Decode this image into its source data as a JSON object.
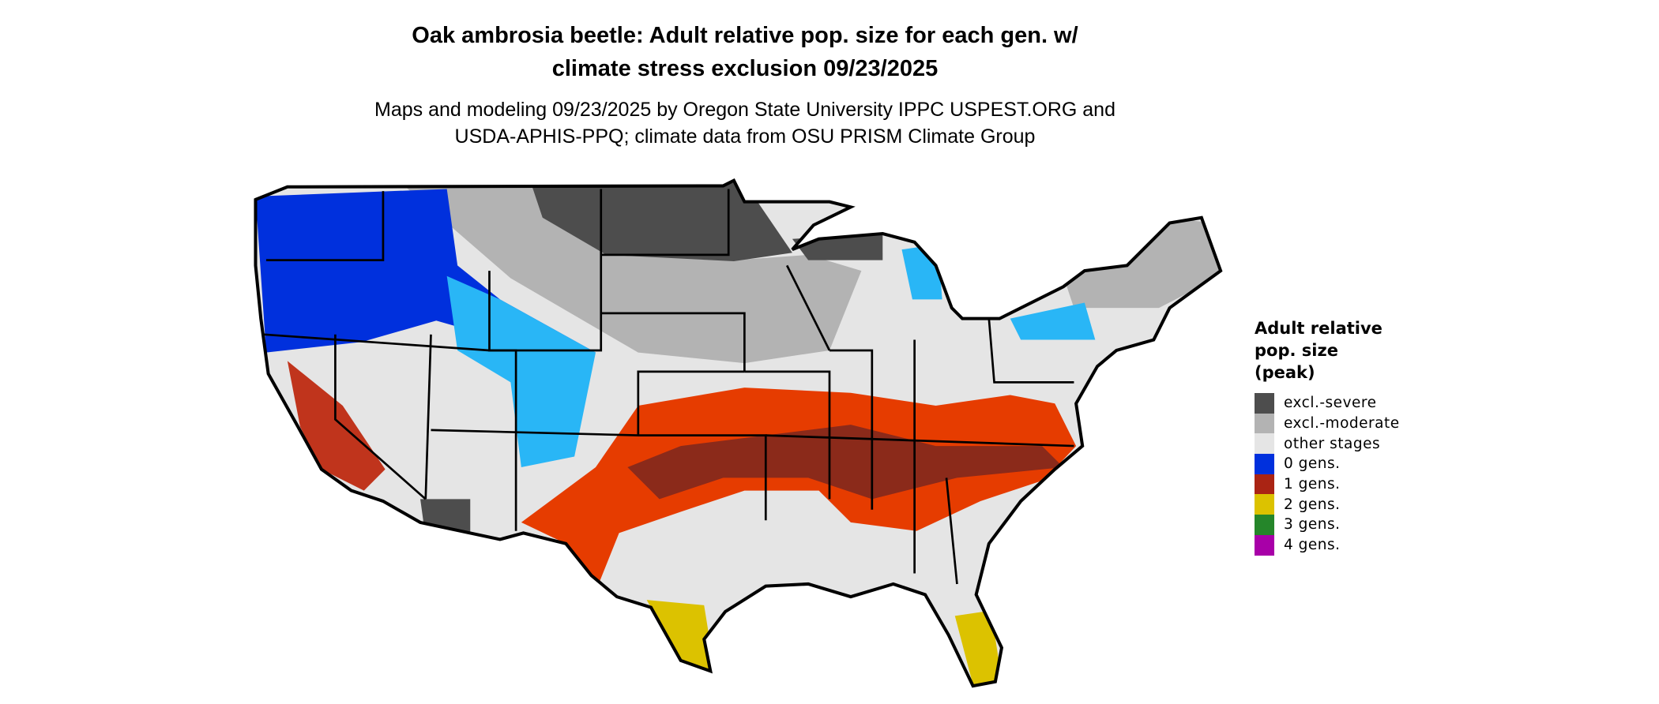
{
  "title": {
    "line1": "Oak ambrosia beetle: Adult relative pop. size for each gen. w/",
    "line2": "climate stress exclusion 09/23/2025"
  },
  "subtitle": {
    "line1": "Maps and modeling 09/23/2025 by Oregon State University IPPC USPEST.ORG and",
    "line2": "USDA-APHIS-PPQ; climate data from OSU PRISM Climate Group"
  },
  "legend": {
    "title_lines": [
      "Adult relative",
      "pop. size",
      "(peak)"
    ],
    "items": [
      {
        "label": "excl.-severe",
        "color": "#4d4d4d"
      },
      {
        "label": "excl.-moderate",
        "color": "#b3b3b3"
      },
      {
        "label": "other stages",
        "color": "#e5e5e5"
      },
      {
        "label": "0 gens.",
        "color": "#0030dd"
      },
      {
        "label": "1 gens.",
        "color": "#aa2414"
      },
      {
        "label": "2 gens.",
        "color": "#dcc200"
      },
      {
        "label": "3 gens.",
        "color": "#25862a"
      },
      {
        "label": "4 gens.",
        "color": "#a800a8"
      }
    ]
  }
}
